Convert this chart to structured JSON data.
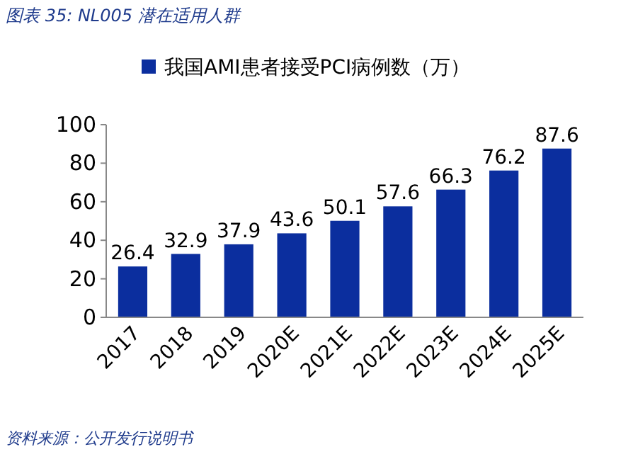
{
  "chart_data": {
    "type": "bar",
    "title": "图表 35:  NL005 潜在适用人群",
    "categories": [
      "2017",
      "2018",
      "2019",
      "2020E",
      "2021E",
      "2022E",
      "2023E",
      "2024E",
      "2025E"
    ],
    "series": [
      {
        "name": "我国AMI患者接受PCI病例数（万）",
        "color": "#0b2e9e",
        "values": [
          26.4,
          32.9,
          37.9,
          43.6,
          50.1,
          57.6,
          66.3,
          76.2,
          87.6
        ]
      }
    ],
    "ylim": [
      0,
      100
    ],
    "yticks": [
      0,
      20,
      40,
      60,
      80,
      100
    ],
    "data_labels": true,
    "legend": "top",
    "grid": false,
    "annotations": [
      "资料来源：公开发行说明书"
    ]
  }
}
